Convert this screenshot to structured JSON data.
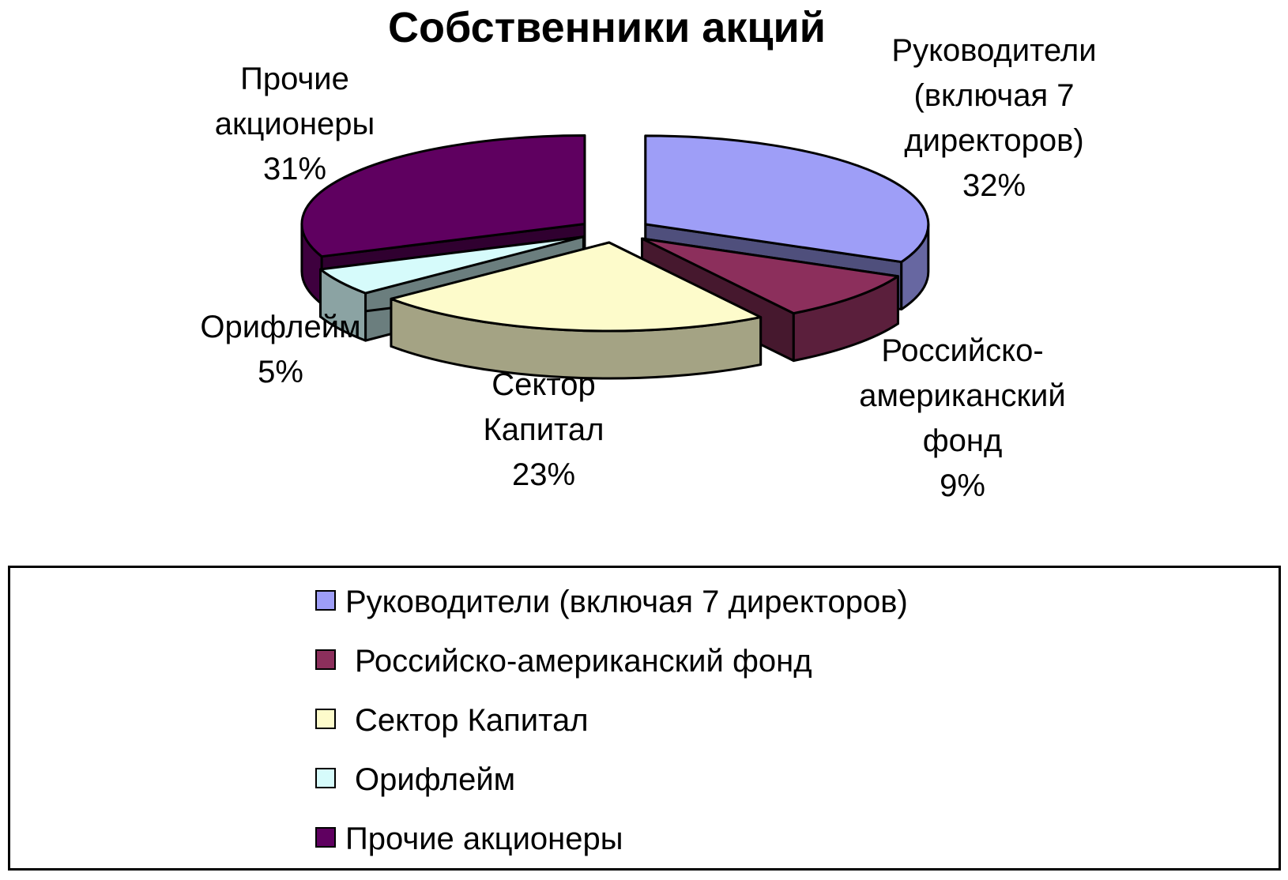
{
  "chart_data": {
    "type": "pie",
    "title": "Собственники акций",
    "unit": "%",
    "legend_position": "bottom",
    "slices": [
      {
        "label": "Руководители (включая 7 директоров)",
        "label_lines": [
          "Руководители",
          "(включая 7",
          "директоров)"
        ],
        "value": 32,
        "value_label": "32%",
        "color": "#9e9ef7"
      },
      {
        "label": "Российско-американский фонд",
        "label_lines": [
          "Российско-",
          "американский",
          "фонд"
        ],
        "value": 9,
        "value_label": "9%",
        "color": "#8c2f5c"
      },
      {
        "label": "Сектор Капитал",
        "label_lines": [
          "Сектор",
          "Капитал"
        ],
        "value": 23,
        "value_label": "23%",
        "color": "#fdfbcb"
      },
      {
        "label": "Орифлейм",
        "label_lines": [
          "Орифлейм"
        ],
        "value": 5,
        "value_label": "5%",
        "color": "#d6fbfb"
      },
      {
        "label": "Прочие акционеры",
        "label_lines": [
          "Прочие",
          "акционеры"
        ],
        "value": 31,
        "value_label": "31%",
        "color": "#5f0060"
      }
    ]
  }
}
